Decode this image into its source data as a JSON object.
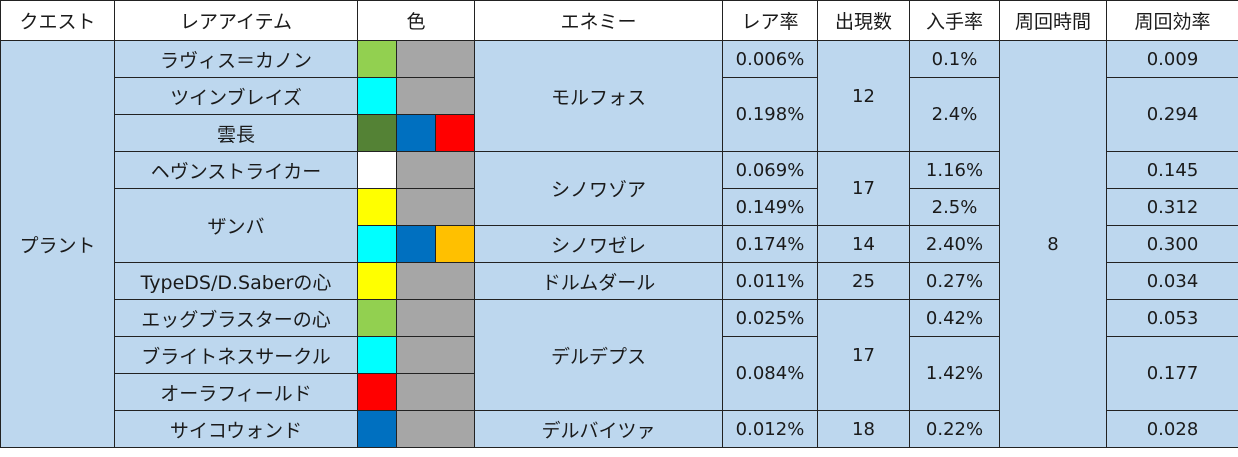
{
  "headers": [
    "クエスト",
    "レアアイテム",
    "色",
    "エネミー",
    "レア率",
    "出現数",
    "入手率",
    "周回時間",
    "周回効率"
  ],
  "quest": "プラント",
  "cycle_time": "8",
  "colors": {
    "cell_bg": "#bdd7ee",
    "empty": "#a6a6a6",
    "lime": "#92d050",
    "cyan": "#00ffff",
    "dark_green": "#548235",
    "blue": "#0070c0",
    "red": "#ff0000",
    "white": "#ffffff",
    "yellow": "#ffff00",
    "orange": "#ffc000"
  },
  "items": [
    "ラヴィス＝カノン",
    "ツインブレイズ",
    "雲長",
    "ヘヴンストライカー",
    "ザンバ",
    "TypeDS/D.Saberの心",
    "エッグブラスターの心",
    "ブライトネスサークル",
    "オーラフィールド",
    "サイコウォンド"
  ],
  "enemies": [
    "モルフォス",
    "シノワゾア",
    "シノワゼレ",
    "ドルムダール",
    "デルデプス",
    "デルバイツァ"
  ],
  "rare_rates": [
    "0.006%",
    "0.198%",
    "0.069%",
    "0.149%",
    "0.174%",
    "0.011%",
    "0.025%",
    "0.084%",
    "0.012%"
  ],
  "counts": [
    "12",
    "17",
    "14",
    "25",
    "17",
    "18"
  ],
  "obtain_rates": [
    "0.1%",
    "2.4%",
    "1.16%",
    "2.5%",
    "2.40%",
    "0.27%",
    "0.42%",
    "1.42%",
    "0.22%"
  ],
  "efficiency": [
    "0.009",
    "0.294",
    "0.145",
    "0.312",
    "0.300",
    "0.034",
    "0.053",
    "0.177",
    "0.028"
  ]
}
